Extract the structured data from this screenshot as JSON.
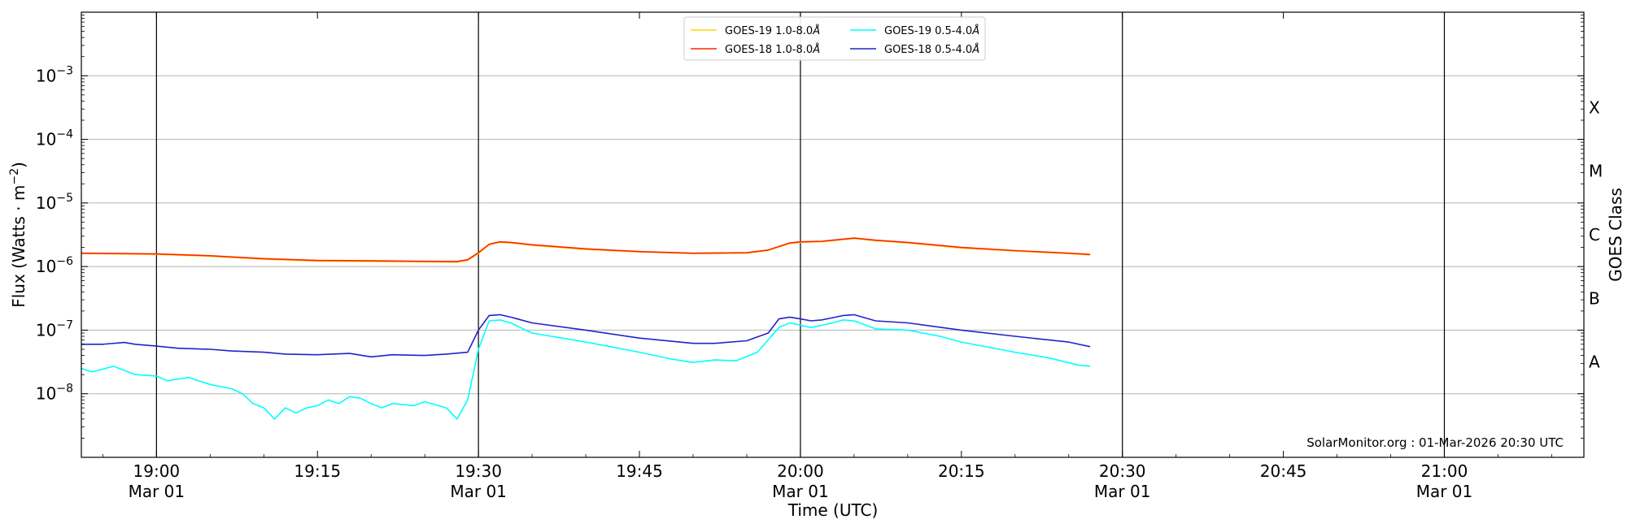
{
  "chart_data": {
    "type": "line",
    "y_scale": "log",
    "ylabel": "Flux (Watts · m⁻²)",
    "ylabel_base": "Flux (Watts · m",
    "ylabel_exp": "−2",
    "ylabel_close": ")",
    "xlabel": "Time (UTC)",
    "right_label": "GOES Class",
    "xlim": [
      "2026-03-01T18:53",
      "2026-03-01T21:13"
    ],
    "ylim": [
      1e-09,
      0.01
    ],
    "grid": "horizontal",
    "legend_position": "top-center",
    "credit": "SolarMonitor.org : 01-Mar-2026 20:30 UTC",
    "x_ticks": [
      {
        "time": "19:00",
        "label": "19:00",
        "sublabel": "Mar 01",
        "major": true
      },
      {
        "time": "19:15",
        "label": "19:15",
        "sublabel": "",
        "major": false
      },
      {
        "time": "19:30",
        "label": "19:30",
        "sublabel": "Mar 01",
        "major": true
      },
      {
        "time": "19:45",
        "label": "19:45",
        "sublabel": "",
        "major": false
      },
      {
        "time": "20:00",
        "label": "20:00",
        "sublabel": "Mar 01",
        "major": true
      },
      {
        "time": "20:15",
        "label": "20:15",
        "sublabel": "",
        "major": false
      },
      {
        "time": "20:30",
        "label": "20:30",
        "sublabel": "Mar 01",
        "major": true
      },
      {
        "time": "20:45",
        "label": "20:45",
        "sublabel": "",
        "major": false
      },
      {
        "time": "21:00",
        "label": "21:00",
        "sublabel": "Mar 01",
        "major": true
      }
    ],
    "y_ticks": [
      {
        "value": 1e-08,
        "base": "10",
        "exp": "−8"
      },
      {
        "value": 1e-07,
        "base": "10",
        "exp": "−7"
      },
      {
        "value": 1e-06,
        "base": "10",
        "exp": "−6"
      },
      {
        "value": 1e-05,
        "base": "10",
        "exp": "−5"
      },
      {
        "value": 0.0001,
        "base": "10",
        "exp": "−4"
      },
      {
        "value": 0.001,
        "base": "10",
        "exp": "−3"
      }
    ],
    "goes_classes": [
      {
        "label": "A",
        "value": 3.16e-08
      },
      {
        "label": "B",
        "value": 3.16e-07
      },
      {
        "label": "C",
        "value": 3.16e-06
      },
      {
        "label": "M",
        "value": 3.16e-05
      },
      {
        "label": "X",
        "value": 0.000316
      }
    ],
    "series": [
      {
        "name": "GOES-19 1.0-8.0Å",
        "name_base": "GOES-19 1.0-8.0",
        "name_unit": "Å",
        "color": "#ffd700",
        "points": [
          [
            "18:53",
            1.6e-06
          ],
          [
            "19:00",
            1.55e-06
          ],
          [
            "19:05",
            1.45e-06
          ],
          [
            "19:10",
            1.3e-06
          ],
          [
            "19:15",
            1.22e-06
          ],
          [
            "19:20",
            1.2e-06
          ],
          [
            "19:25",
            1.18e-06
          ],
          [
            "19:28",
            1.17e-06
          ],
          [
            "19:29",
            1.25e-06
          ],
          [
            "19:30",
            1.6e-06
          ],
          [
            "19:31",
            2.2e-06
          ],
          [
            "19:32",
            2.4e-06
          ],
          [
            "19:33",
            2.35e-06
          ],
          [
            "19:35",
            2.15e-06
          ],
          [
            "19:40",
            1.85e-06
          ],
          [
            "19:45",
            1.7e-06
          ],
          [
            "19:50",
            1.6e-06
          ],
          [
            "19:55",
            1.62e-06
          ],
          [
            "19:57",
            1.8e-06
          ],
          [
            "19:59",
            2.3e-06
          ],
          [
            "20:00",
            2.4e-06
          ],
          [
            "20:02",
            2.45e-06
          ],
          [
            "20:05",
            2.75e-06
          ],
          [
            "20:07",
            2.55e-06
          ],
          [
            "20:10",
            2.35e-06
          ],
          [
            "20:15",
            1.95e-06
          ],
          [
            "20:20",
            1.75e-06
          ],
          [
            "20:25",
            1.6e-06
          ],
          [
            "20:27",
            1.52e-06
          ]
        ]
      },
      {
        "name": "GOES-18 1.0-8.0Å",
        "name_base": "GOES-18 1.0-8.0",
        "name_unit": "Å",
        "color": "#ff2200",
        "points": [
          [
            "18:53",
            1.62e-06
          ],
          [
            "19:00",
            1.58e-06
          ],
          [
            "19:05",
            1.48e-06
          ],
          [
            "19:10",
            1.33e-06
          ],
          [
            "19:15",
            1.25e-06
          ],
          [
            "19:20",
            1.23e-06
          ],
          [
            "19:25",
            1.21e-06
          ],
          [
            "19:28",
            1.2e-06
          ],
          [
            "19:29",
            1.28e-06
          ],
          [
            "19:30",
            1.65e-06
          ],
          [
            "19:31",
            2.25e-06
          ],
          [
            "19:32",
            2.45e-06
          ],
          [
            "19:33",
            2.4e-06
          ],
          [
            "19:35",
            2.2e-06
          ],
          [
            "19:40",
            1.9e-06
          ],
          [
            "19:45",
            1.72e-06
          ],
          [
            "19:50",
            1.62e-06
          ],
          [
            "19:55",
            1.65e-06
          ],
          [
            "19:57",
            1.82e-06
          ],
          [
            "19:59",
            2.35e-06
          ],
          [
            "20:00",
            2.45e-06
          ],
          [
            "20:02",
            2.5e-06
          ],
          [
            "20:05",
            2.8e-06
          ],
          [
            "20:07",
            2.6e-06
          ],
          [
            "20:10",
            2.4e-06
          ],
          [
            "20:15",
            2e-06
          ],
          [
            "20:20",
            1.78e-06
          ],
          [
            "20:25",
            1.62e-06
          ],
          [
            "20:27",
            1.55e-06
          ]
        ]
      },
      {
        "name": "GOES-19 0.5-4.0Å",
        "name_base": "GOES-19 0.5-4.0",
        "name_unit": "Å",
        "color": "#00ffff",
        "points": [
          [
            "18:53",
            2.5e-08
          ],
          [
            "18:54",
            2.2e-08
          ],
          [
            "18:56",
            2.7e-08
          ],
          [
            "18:58",
            2e-08
          ],
          [
            "19:00",
            1.9e-08
          ],
          [
            "19:01",
            1.6e-08
          ],
          [
            "19:03",
            1.8e-08
          ],
          [
            "19:05",
            1.4e-08
          ],
          [
            "19:07",
            1.2e-08
          ],
          [
            "19:08",
            1e-08
          ],
          [
            "19:09",
            7e-09
          ],
          [
            "19:10",
            6e-09
          ],
          [
            "19:11",
            4e-09
          ],
          [
            "19:12",
            6e-09
          ],
          [
            "19:13",
            5e-09
          ],
          [
            "19:14",
            6e-09
          ],
          [
            "19:15",
            6.5e-09
          ],
          [
            "19:16",
            8e-09
          ],
          [
            "19:17",
            7e-09
          ],
          [
            "19:18",
            9e-09
          ],
          [
            "19:19",
            8.5e-09
          ],
          [
            "19:20",
            7e-09
          ],
          [
            "19:21",
            6e-09
          ],
          [
            "19:22",
            7e-09
          ],
          [
            "19:24",
            6.5e-09
          ],
          [
            "19:25",
            7.5e-09
          ],
          [
            "19:27",
            6e-09
          ],
          [
            "19:28",
            4e-09
          ],
          [
            "19:29",
            8e-09
          ],
          [
            "19:30",
            5e-08
          ],
          [
            "19:31",
            1.4e-07
          ],
          [
            "19:32",
            1.45e-07
          ],
          [
            "19:33",
            1.3e-07
          ],
          [
            "19:35",
            9e-08
          ],
          [
            "19:40",
            6.5e-08
          ],
          [
            "19:45",
            4.5e-08
          ],
          [
            "19:48",
            3.5e-08
          ],
          [
            "19:50",
            3.1e-08
          ],
          [
            "19:52",
            3.4e-08
          ],
          [
            "19:54",
            3.3e-08
          ],
          [
            "19:56",
            4.5e-08
          ],
          [
            "19:58",
            1.1e-07
          ],
          [
            "19:59",
            1.3e-07
          ],
          [
            "20:01",
            1.1e-07
          ],
          [
            "20:03",
            1.3e-07
          ],
          [
            "20:04",
            1.45e-07
          ],
          [
            "20:05",
            1.4e-07
          ],
          [
            "20:07",
            1.05e-07
          ],
          [
            "20:10",
            1e-07
          ],
          [
            "20:13",
            8e-08
          ],
          [
            "20:15",
            6.5e-08
          ],
          [
            "20:20",
            4.5e-08
          ],
          [
            "20:23",
            3.7e-08
          ],
          [
            "20:26",
            2.8e-08
          ],
          [
            "20:27",
            2.7e-08
          ]
        ]
      },
      {
        "name": "GOES-18 0.5-4.0Å",
        "name_base": "GOES-18 0.5-4.0",
        "name_unit": "Å",
        "color": "#2222cc",
        "points": [
          [
            "18:53",
            6e-08
          ],
          [
            "18:55",
            6e-08
          ],
          [
            "18:57",
            6.4e-08
          ],
          [
            "18:58",
            6e-08
          ],
          [
            "19:00",
            5.6e-08
          ],
          [
            "19:02",
            5.2e-08
          ],
          [
            "19:05",
            5e-08
          ],
          [
            "19:07",
            4.7e-08
          ],
          [
            "19:10",
            4.5e-08
          ],
          [
            "19:12",
            4.2e-08
          ],
          [
            "19:15",
            4.1e-08
          ],
          [
            "19:18",
            4.3e-08
          ],
          [
            "19:20",
            3.8e-08
          ],
          [
            "19:22",
            4.1e-08
          ],
          [
            "19:25",
            4e-08
          ],
          [
            "19:27",
            4.2e-08
          ],
          [
            "19:29",
            4.5e-08
          ],
          [
            "19:30",
            1e-07
          ],
          [
            "19:31",
            1.7e-07
          ],
          [
            "19:32",
            1.75e-07
          ],
          [
            "19:33",
            1.6e-07
          ],
          [
            "19:35",
            1.3e-07
          ],
          [
            "19:40",
            1e-07
          ],
          [
            "19:45",
            7.5e-08
          ],
          [
            "19:50",
            6.2e-08
          ],
          [
            "19:52",
            6.2e-08
          ],
          [
            "19:55",
            6.8e-08
          ],
          [
            "19:57",
            9e-08
          ],
          [
            "19:58",
            1.5e-07
          ],
          [
            "19:59",
            1.6e-07
          ],
          [
            "20:00",
            1.5e-07
          ],
          [
            "20:01",
            1.4e-07
          ],
          [
            "20:02",
            1.45e-07
          ],
          [
            "20:04",
            1.7e-07
          ],
          [
            "20:05",
            1.75e-07
          ],
          [
            "20:07",
            1.4e-07
          ],
          [
            "20:10",
            1.3e-07
          ],
          [
            "20:15",
            1e-07
          ],
          [
            "20:20",
            8e-08
          ],
          [
            "20:25",
            6.5e-08
          ],
          [
            "20:27",
            5.5e-08
          ]
        ]
      }
    ]
  }
}
